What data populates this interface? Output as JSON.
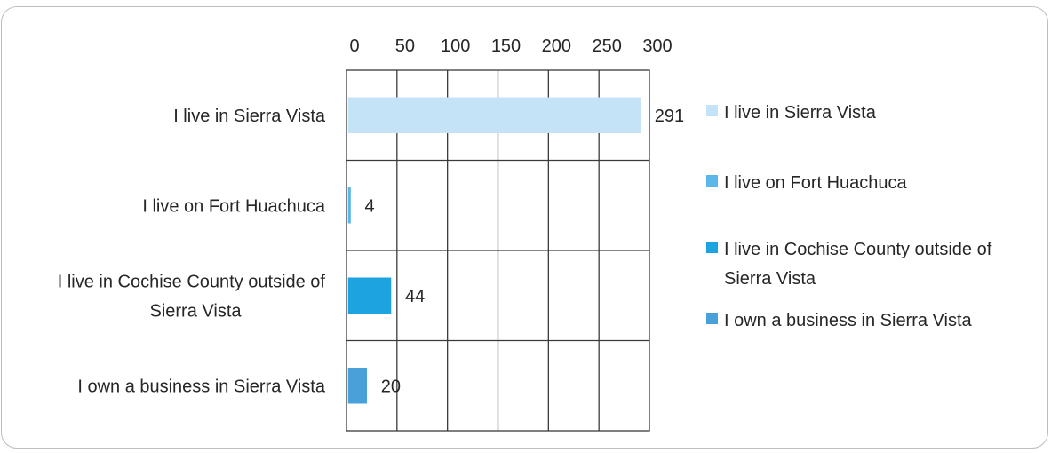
{
  "chart_data": {
    "type": "bar",
    "orientation": "horizontal",
    "categories": [
      "I live in Sierra Vista",
      "I live on Fort Huachuca",
      "I live in Cochise County outside of Sierra Vista",
      "I own a business in Sierra Vista"
    ],
    "category_label_lines": [
      [
        "I live in Sierra Vista"
      ],
      [
        "I live on Fort Huachuca"
      ],
      [
        "I live in Cochise County outside of",
        "Sierra Vista"
      ],
      [
        "I own a business in Sierra Vista"
      ]
    ],
    "values": [
      291,
      4,
      44,
      20
    ],
    "data_labels": [
      "291",
      "4",
      "44",
      "20"
    ],
    "xlim": [
      0,
      300
    ],
    "ticks": [
      0,
      50,
      100,
      150,
      200,
      250,
      300
    ],
    "tick_labels": [
      "0",
      "50",
      "100",
      "150",
      "200",
      "250",
      "300"
    ],
    "x_axis_position": "top",
    "grid": true,
    "legend": {
      "position": "right",
      "entries": [
        {
          "lines": [
            "I live in Sierra Vista"
          ],
          "color": "#c5e3f6"
        },
        {
          "lines": [
            "I live on Fort Huachuca"
          ],
          "color": "#5ab7e8"
        },
        {
          "lines": [
            "I live in Cochise County outside of",
            "Sierra Vista"
          ],
          "color": "#1ca3e0"
        },
        {
          "lines": [
            "I own a business in Sierra Vista"
          ],
          "color": "#4aa0d8"
        }
      ]
    },
    "colors": [
      "#c5e3f6",
      "#5ab7e8",
      "#1ca3e0",
      "#4aa0d8"
    ],
    "title": "",
    "xlabel": "",
    "ylabel": ""
  }
}
